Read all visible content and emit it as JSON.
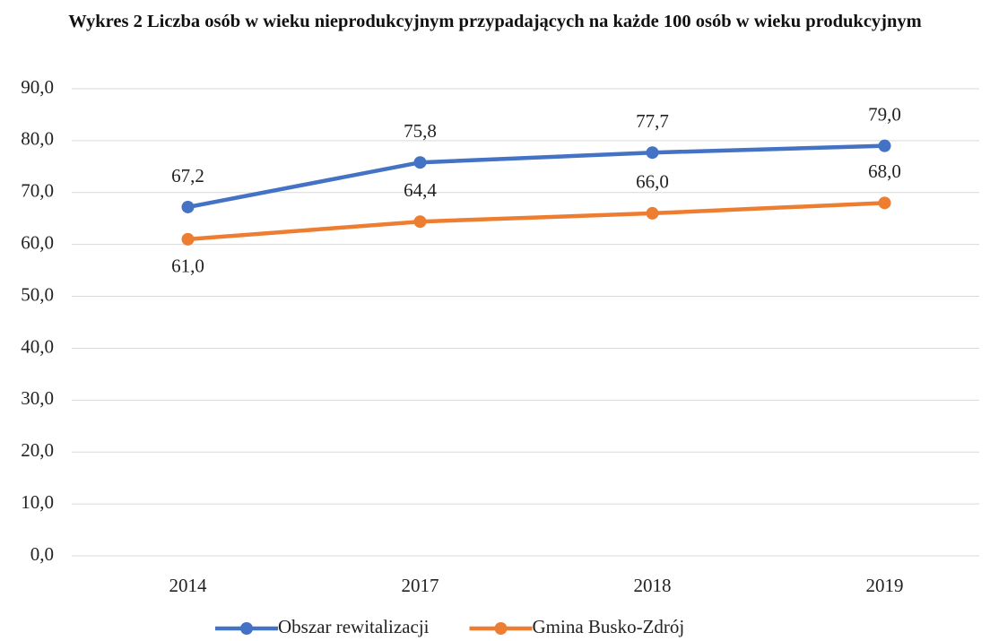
{
  "chart_data": {
    "type": "line",
    "title": "Wykres 2 Liczba osób w wieku nieprodukcyjnym przypadających na każde 100 osób w wieku produkcyjnym",
    "categories": [
      "2014",
      "2017",
      "2018",
      "2019"
    ],
    "series": [
      {
        "name": "Obszar rewitalizacji",
        "color": "#4472c4",
        "values": [
          67.2,
          75.8,
          77.7,
          79.0
        ],
        "value_labels": [
          "67,2",
          "75,8",
          "77,7",
          "79,0"
        ]
      },
      {
        "name": "Gmina Busko-Zdrój",
        "color": "#ed7d31",
        "values": [
          61.0,
          64.4,
          66.0,
          68.0
        ],
        "value_labels": [
          "61,0",
          "64,4",
          "66,0",
          "68,0"
        ]
      }
    ],
    "ylim": [
      0,
      90
    ],
    "yticks": [
      {
        "value": 0,
        "label": "0,0"
      },
      {
        "value": 10,
        "label": "10,0"
      },
      {
        "value": 20,
        "label": "20,0"
      },
      {
        "value": 30,
        "label": "30,0"
      },
      {
        "value": 40,
        "label": "40,0"
      },
      {
        "value": 50,
        "label": "50,0"
      },
      {
        "value": 60,
        "label": "60,0"
      },
      {
        "value": 70,
        "label": "70,0"
      },
      {
        "value": 80,
        "label": "80,0"
      },
      {
        "value": 90,
        "label": "90,0"
      }
    ],
    "grid": true,
    "legend": "bottom"
  }
}
